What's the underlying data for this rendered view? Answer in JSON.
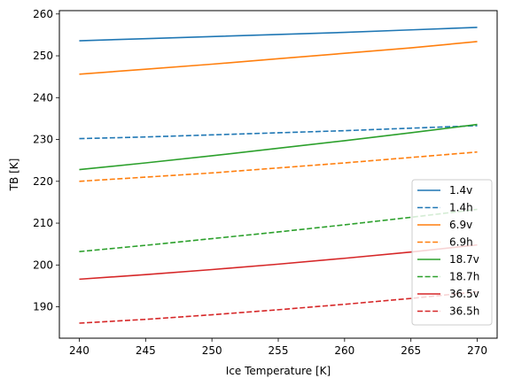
{
  "chart_data": {
    "type": "line",
    "title": "",
    "xlabel": "Ice Temperature [K]",
    "ylabel": "TB [K]",
    "xlim": [
      238.5,
      271.5
    ],
    "ylim": [
      182.5,
      260.8
    ],
    "xticks": [
      240,
      245,
      250,
      255,
      260,
      265,
      270
    ],
    "yticks": [
      190,
      200,
      210,
      220,
      230,
      240,
      250,
      260
    ],
    "grid": false,
    "legend_position": "lower right",
    "x": [
      240,
      270
    ],
    "series": [
      {
        "name": "1.4v",
        "color": "#1f77b4",
        "dash": "solid",
        "x": [
          240,
          245,
          250,
          255,
          260,
          265,
          270
        ],
        "values": [
          253.6,
          254.1,
          254.6,
          255.1,
          255.6,
          256.2,
          256.8
        ]
      },
      {
        "name": "1.4h",
        "color": "#1f77b4",
        "dash": "dashed",
        "x": [
          240,
          245,
          250,
          255,
          260,
          265,
          270
        ],
        "values": [
          230.2,
          230.6,
          231.1,
          231.6,
          232.1,
          232.7,
          233.3
        ]
      },
      {
        "name": "6.9v",
        "color": "#ff7f0e",
        "dash": "solid",
        "x": [
          240,
          245,
          250,
          255,
          260,
          265,
          270
        ],
        "values": [
          245.6,
          246.8,
          248.0,
          249.3,
          250.6,
          251.9,
          253.4
        ]
      },
      {
        "name": "6.9h",
        "color": "#ff7f0e",
        "dash": "dashed",
        "x": [
          240,
          245,
          250,
          255,
          260,
          265,
          270
        ],
        "values": [
          220.0,
          221.0,
          222.0,
          223.2,
          224.4,
          225.7,
          227.0
        ]
      },
      {
        "name": "18.7v",
        "color": "#2ca02c",
        "dash": "solid",
        "x": [
          240,
          245,
          250,
          255,
          260,
          265,
          270
        ],
        "values": [
          222.8,
          224.4,
          226.1,
          227.9,
          229.7,
          231.6,
          233.6
        ]
      },
      {
        "name": "18.7h",
        "color": "#2ca02c",
        "dash": "dashed",
        "x": [
          240,
          245,
          250,
          255,
          260,
          265,
          270
        ],
        "values": [
          203.2,
          204.7,
          206.3,
          207.9,
          209.6,
          211.4,
          213.3
        ]
      },
      {
        "name": "36.5v",
        "color": "#d62728",
        "dash": "solid",
        "x": [
          240,
          245,
          250,
          255,
          260,
          265,
          270
        ],
        "values": [
          196.6,
          197.7,
          198.9,
          200.2,
          201.6,
          203.1,
          204.8
        ]
      },
      {
        "name": "36.5h",
        "color": "#d62728",
        "dash": "dashed",
        "x": [
          240,
          245,
          250,
          255,
          260,
          265,
          270
        ],
        "values": [
          186.1,
          187.0,
          188.1,
          189.3,
          190.6,
          192.0,
          193.6
        ]
      }
    ]
  }
}
